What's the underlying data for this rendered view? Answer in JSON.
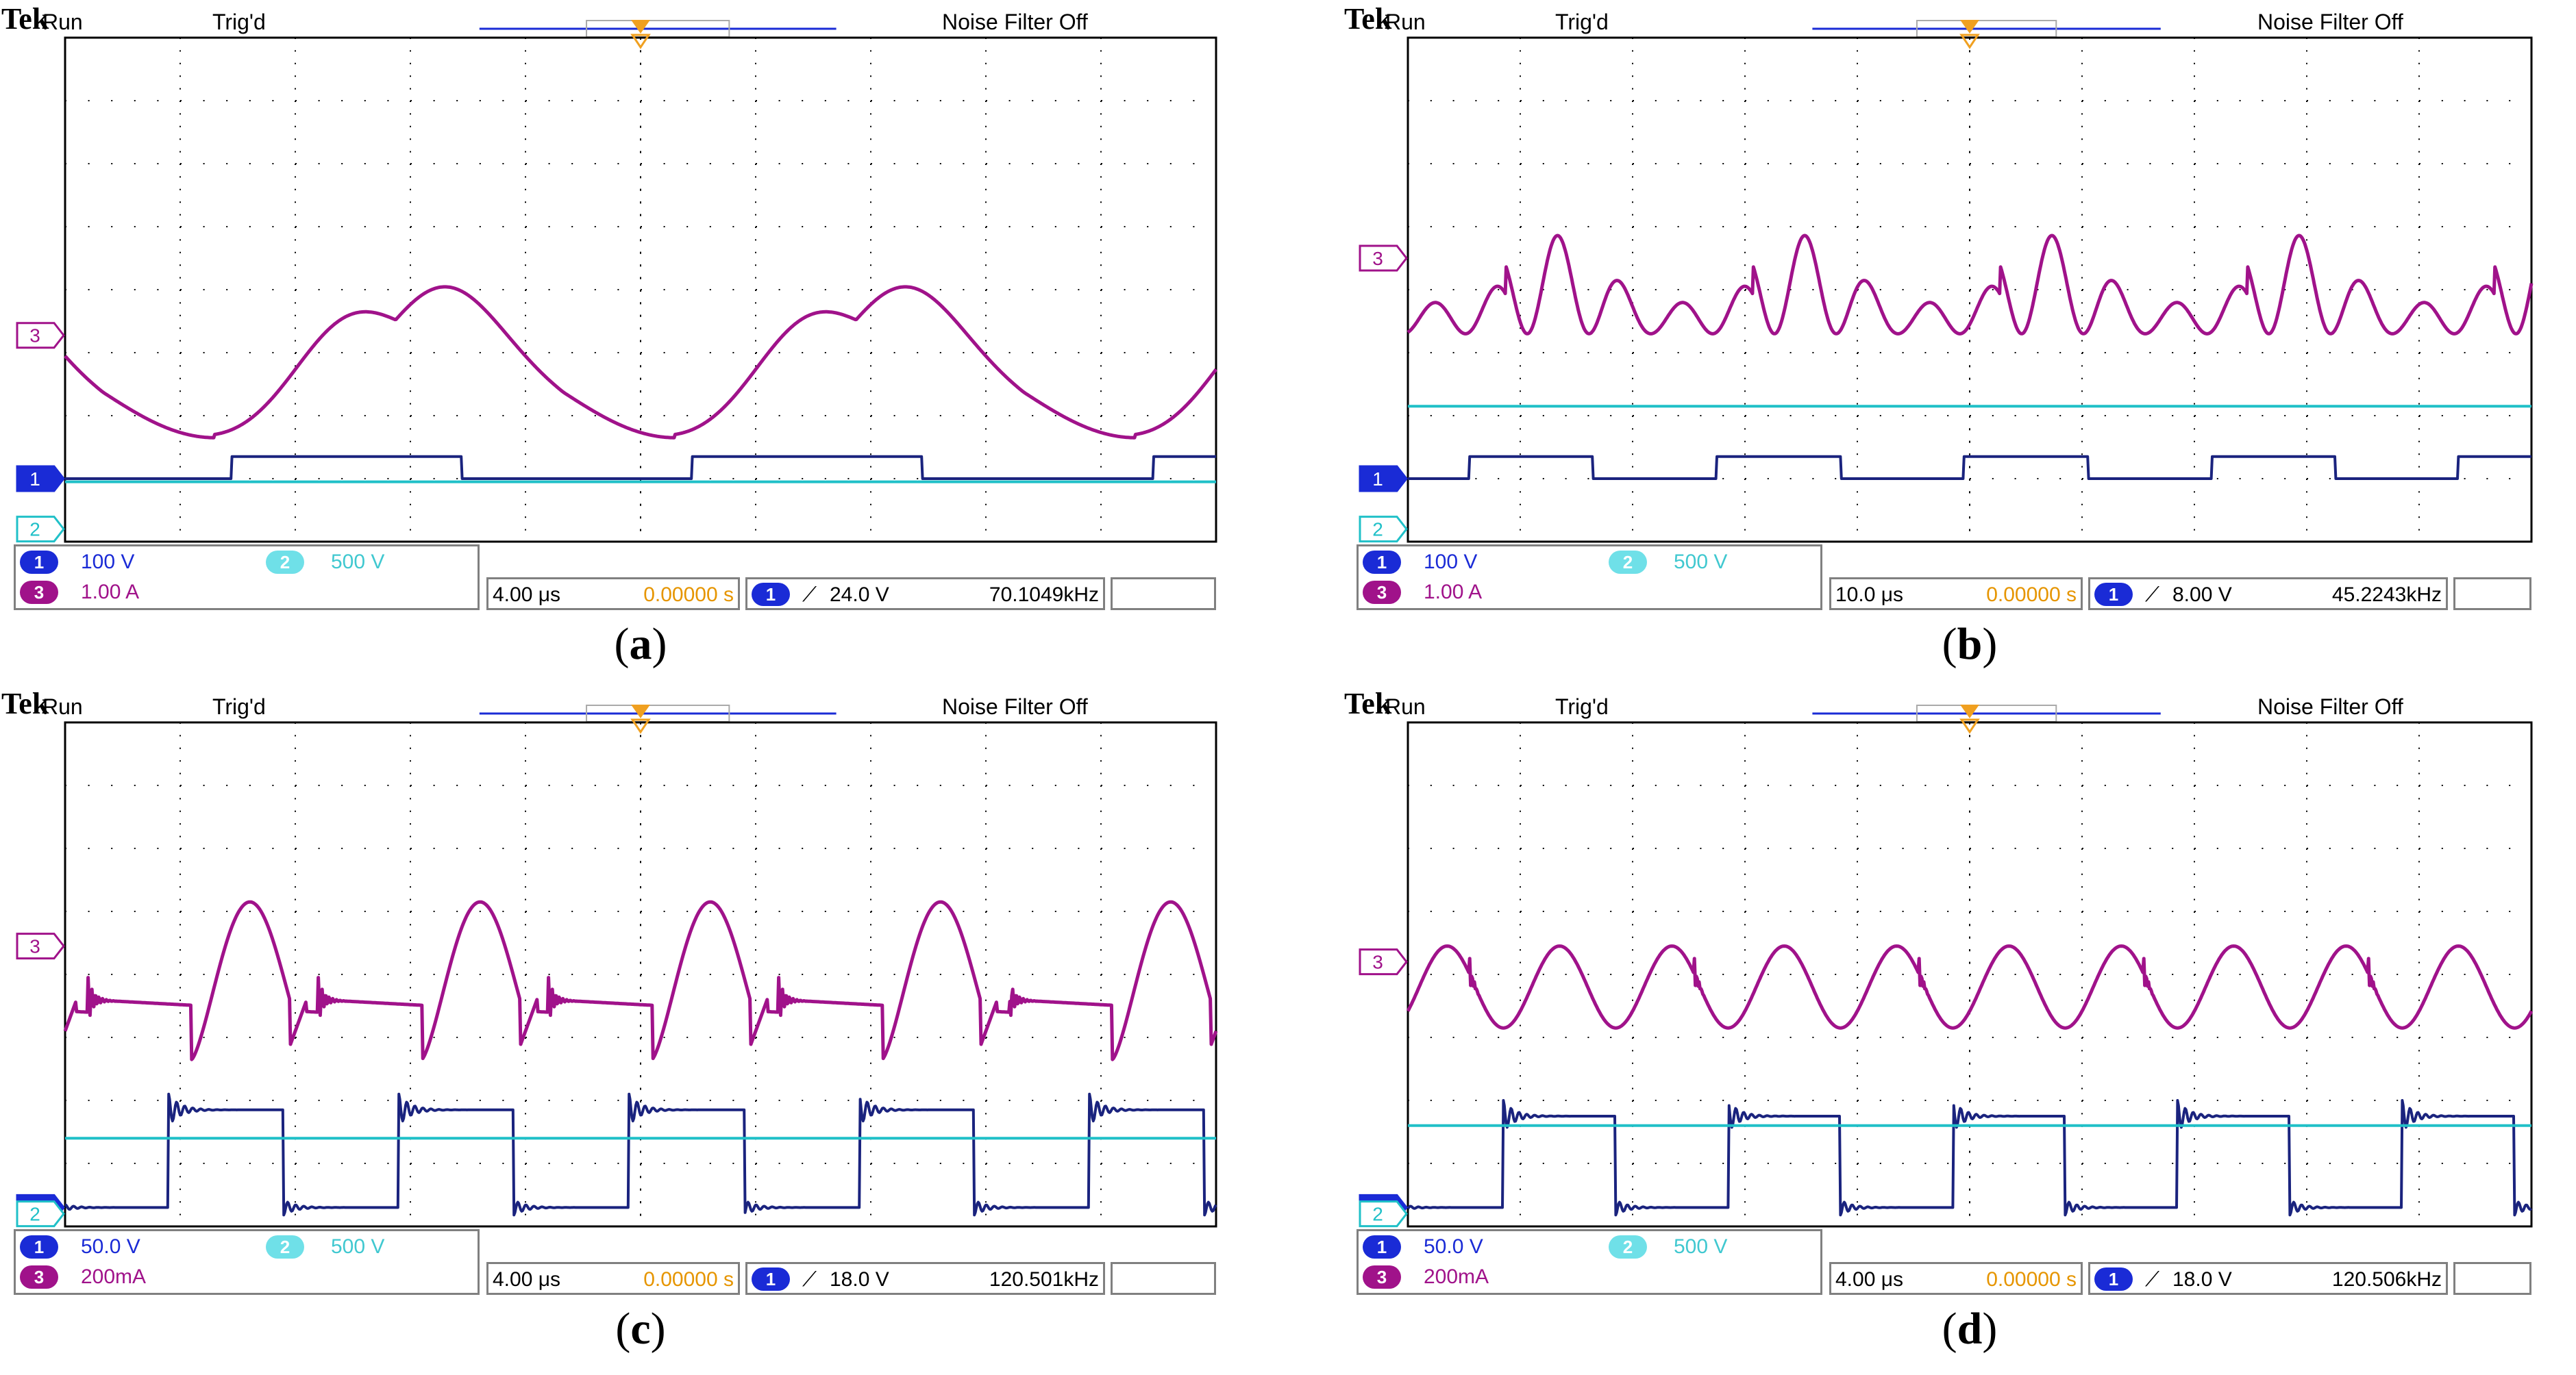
{
  "colors": {
    "ch1": "#1a237e",
    "ch1_badge": "#1a2bd6",
    "ch3": "#a0128a",
    "ch2": "#20c0c8",
    "ch2_badge": "#6fe0e8",
    "grid": "#000000",
    "trigger_marker": "#f0a020",
    "time_orange": "#e69500",
    "ch2_label_text": "#40c8d0"
  },
  "panels": [
    {
      "caption": "a",
      "header": {
        "brand": "Tek",
        "state": "Run",
        "trigger_state": "Trig'd",
        "filter": "Noise Filter Off"
      },
      "status": {
        "ch1_scale": "100 V",
        "ch2_scale": "500 V",
        "ch3_scale": "1.00 A",
        "timebase": "4.00 μs",
        "delay": "0.00000 s",
        "trigger_level": "24.0 V",
        "frequency": "70.1049kHz"
      },
      "channel_markers": {
        "ch1": "1",
        "ch2": "2",
        "ch3": "3"
      }
    },
    {
      "caption": "b",
      "header": {
        "brand": "Tek",
        "state": "Run",
        "trigger_state": "Trig'd",
        "filter": "Noise Filter Off"
      },
      "status": {
        "ch1_scale": "100 V",
        "ch2_scale": "500 V",
        "ch3_scale": "1.00 A",
        "timebase": "10.0 μs",
        "delay": "0.00000 s",
        "trigger_level": "8.00 V",
        "frequency": "45.2243kHz"
      },
      "channel_markers": {
        "ch1": "1",
        "ch2": "2",
        "ch3": "3"
      }
    },
    {
      "caption": "c",
      "header": {
        "brand": "Tek",
        "state": "Run",
        "trigger_state": "Trig'd",
        "filter": "Noise Filter Off"
      },
      "status": {
        "ch1_scale": "50.0 V",
        "ch2_scale": "500 V",
        "ch3_scale": "200mA",
        "timebase": "4.00 μs",
        "delay": "0.00000 s",
        "trigger_level": "18.0 V",
        "frequency": "120.501kHz"
      },
      "channel_markers": {
        "ch1": "1",
        "ch2": "2",
        "ch3": "3"
      }
    },
    {
      "caption": "d",
      "header": {
        "brand": "Tek",
        "state": "Run",
        "trigger_state": "Trig'd",
        "filter": "Noise Filter Off"
      },
      "status": {
        "ch1_scale": "50.0 V",
        "ch2_scale": "500 V",
        "ch3_scale": "200mA",
        "timebase": "4.00 μs",
        "delay": "0.00000 s",
        "trigger_level": "18.0 V",
        "frequency": "120.506kHz"
      },
      "channel_markers": {
        "ch1": "1",
        "ch2": "2",
        "ch3": "3"
      }
    }
  ],
  "chart_data": [
    {
      "type": "line",
      "title": "(a)",
      "x_divisions": 10,
      "y_divisions": 8,
      "series": [
        {
          "name": "CH1 voltage",
          "scale": "100 V/div",
          "waveform": "square",
          "period_div": 4.0,
          "phase_div": 1.45,
          "low_div": 1.0,
          "high_div": 1.35
        },
        {
          "name": "CH3 current",
          "scale": "1.00 A/div",
          "waveform": "double-hump",
          "period_div": 4.0,
          "min_div": 1.65,
          "max_div": 4.1,
          "dip_div": 3.3
        },
        {
          "name": "CH2 voltage",
          "scale": "500 V/div",
          "waveform": "dc",
          "level_div": 0.95
        }
      ]
    },
    {
      "type": "line",
      "title": "(b)",
      "x_divisions": 10,
      "y_divisions": 8,
      "series": [
        {
          "name": "CH1 voltage",
          "scale": "100 V/div",
          "waveform": "square",
          "period_div": 2.2,
          "phase_div": 0.55,
          "low_div": 1.0,
          "high_div": 1.35
        },
        {
          "name": "CH3 current",
          "scale": "1.00 A/div",
          "waveform": "multi-resonant",
          "period_div": 2.2,
          "min_div": 3.3,
          "max_div": 4.9
        },
        {
          "name": "CH2 voltage",
          "scale": "500 V/div",
          "waveform": "dc",
          "level_div": 2.15
        }
      ]
    },
    {
      "type": "line",
      "title": "(c)",
      "x_divisions": 10,
      "y_divisions": 8,
      "series": [
        {
          "name": "CH1 voltage",
          "scale": "50.0 V/div",
          "waveform": "square-ringing",
          "period_div": 2.0,
          "phase_div": 0.9,
          "low_div": 0.3,
          "high_div": 1.85
        },
        {
          "name": "CH3 current",
          "scale": "200mA/div",
          "waveform": "resonant-pulse",
          "period_div": 2.0,
          "min_div": 2.85,
          "max_div": 5.25,
          "base_div": 3.6
        },
        {
          "name": "CH2 voltage",
          "scale": "500 V/div",
          "waveform": "dc",
          "level_div": 1.4
        }
      ]
    },
    {
      "type": "line",
      "title": "(d)",
      "x_divisions": 10,
      "y_divisions": 8,
      "series": [
        {
          "name": "CH1 voltage",
          "scale": "50.0 V/div",
          "waveform": "square-ringing",
          "period_div": 2.0,
          "phase_div": 0.85,
          "low_div": 0.3,
          "high_div": 1.75
        },
        {
          "name": "CH3 current",
          "scale": "200mA/div",
          "waveform": "sinusoidal",
          "period_div": 1.0,
          "min_div": 3.15,
          "max_div": 4.45
        },
        {
          "name": "CH2 voltage",
          "scale": "500 V/div",
          "waveform": "dc",
          "level_div": 1.6
        }
      ]
    }
  ]
}
